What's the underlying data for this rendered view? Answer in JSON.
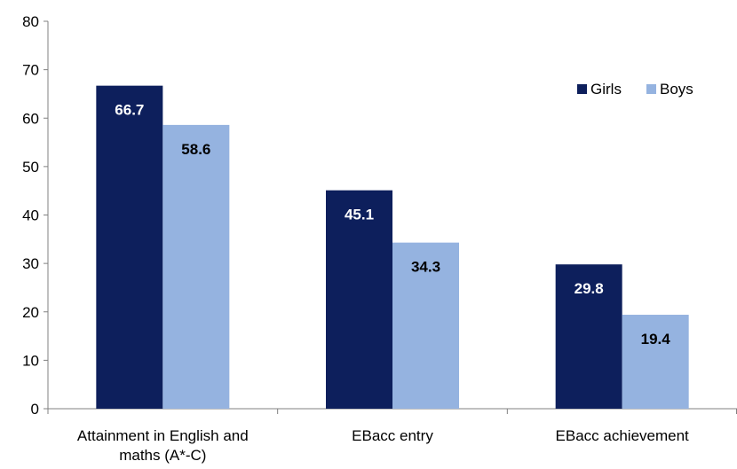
{
  "chart_data": {
    "type": "bar",
    "categories": [
      [
        "Attainment in English and",
        "maths (A*-C)"
      ],
      [
        "EBacc entry"
      ],
      [
        "EBacc achievement"
      ]
    ],
    "series": [
      {
        "name": "Girls",
        "values": [
          66.7,
          45.1,
          29.8
        ]
      },
      {
        "name": "Boys",
        "values": [
          58.6,
          34.3,
          19.4
        ]
      }
    ],
    "data_labels": [
      [
        "66.7",
        "45.1",
        "29.8"
      ],
      [
        "58.6",
        "34.3",
        "19.4"
      ]
    ],
    "ylim": [
      0,
      80
    ],
    "yticks": [
      "0",
      "10",
      "20",
      "30",
      "40",
      "50",
      "60",
      "70",
      "80"
    ],
    "legend_position": "top-right",
    "grid": false,
    "colors": {
      "girls": "#0d1f5c",
      "boys": "#95b3e0",
      "girls_label": "#ffffff",
      "boys_label": "#000000",
      "axis": "#808080"
    }
  }
}
